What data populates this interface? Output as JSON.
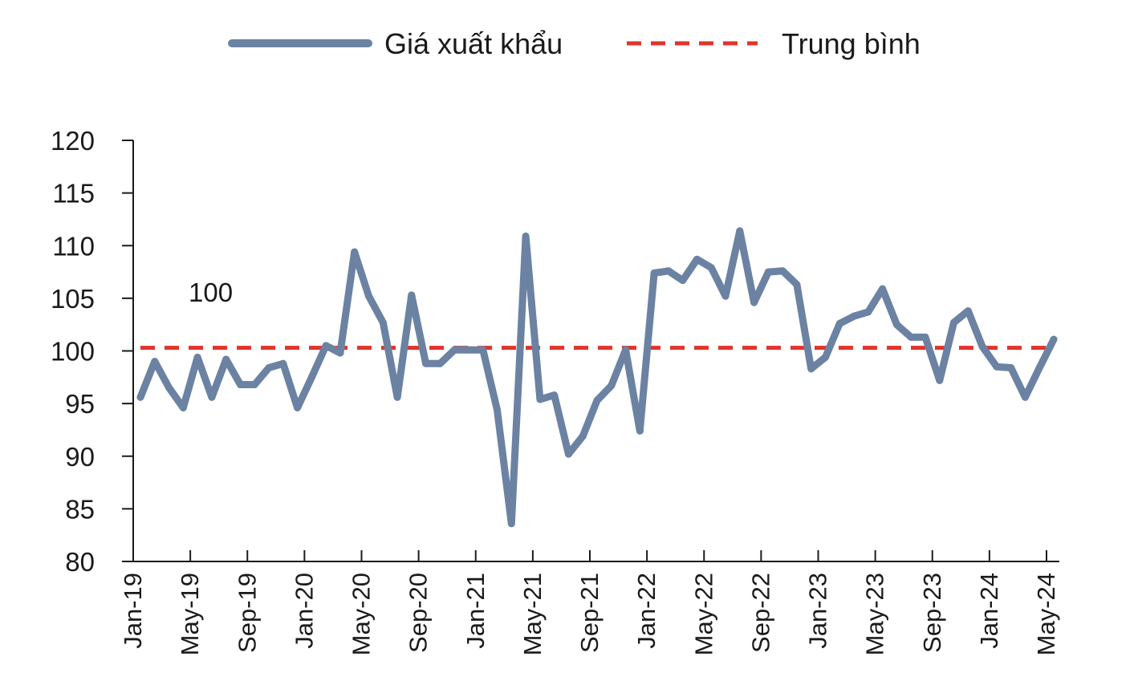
{
  "chart_data": {
    "type": "line",
    "title": "",
    "xlabel": "",
    "ylabel": "",
    "ylim": [
      80,
      120
    ],
    "y_ticks": [
      "80",
      "85",
      "90",
      "95",
      "100",
      "105",
      "110",
      "115",
      "120"
    ],
    "x_tick_labels": [
      "Jan-19",
      "May-19",
      "Sep-19",
      "Jan-20",
      "May-20",
      "Sep-20",
      "Jan-21",
      "May-21",
      "Sep-21",
      "Jan-22",
      "May-22",
      "Sep-22",
      "Jan-23",
      "May-23",
      "Sep-23",
      "Jan-24",
      "May-24"
    ],
    "grid": false,
    "legend_position": "top-center",
    "annotation": "100",
    "series": [
      {
        "name": "Giá xuất khẩu",
        "color": "#6b82a3",
        "style": "solid",
        "x": [
          "Jan-19",
          "Feb-19",
          "Mar-19",
          "Apr-19",
          "May-19",
          "Jun-19",
          "Jul-19",
          "Aug-19",
          "Sep-19",
          "Oct-19",
          "Nov-19",
          "Dec-19",
          "Jan-20",
          "Feb-20",
          "Mar-20",
          "Apr-20",
          "May-20",
          "Jun-20",
          "Jul-20",
          "Aug-20",
          "Sep-20",
          "Oct-20",
          "Nov-20",
          "Dec-20",
          "Jan-21",
          "Feb-21",
          "Mar-21",
          "Apr-21",
          "May-21",
          "Jun-21",
          "Jul-21",
          "Aug-21",
          "Sep-21",
          "Oct-21",
          "Nov-21",
          "Dec-21",
          "Jan-22",
          "Feb-22",
          "Mar-22",
          "Apr-22",
          "May-22",
          "Jun-22",
          "Jul-22",
          "Aug-22",
          "Sep-22",
          "Oct-22",
          "Nov-22",
          "Dec-22",
          "Jan-23",
          "Feb-23",
          "Mar-23",
          "Apr-23",
          "May-23",
          "Jun-23",
          "Jul-23",
          "Aug-23",
          "Sep-23",
          "Oct-23",
          "Nov-23",
          "Dec-23",
          "Jan-24",
          "Feb-24",
          "Mar-24",
          "Apr-24",
          "May-24"
        ],
        "values": [
          95.6,
          99.0,
          96.5,
          94.6,
          99.4,
          95.6,
          99.2,
          96.8,
          96.8,
          98.4,
          98.8,
          94.6,
          97.5,
          100.5,
          99.8,
          109.4,
          105.2,
          102.7,
          95.6,
          105.3,
          98.8,
          98.8,
          100.1,
          100.1,
          100.1,
          94.4,
          83.6,
          110.9,
          95.4,
          95.8,
          90.2,
          91.9,
          95.3,
          96.7,
          100.1,
          92.4,
          107.4,
          107.6,
          106.7,
          108.7,
          107.9,
          105.2,
          111.4,
          104.6,
          107.5,
          107.6,
          106.3,
          98.3,
          99.4,
          102.6,
          103.3,
          103.7,
          105.9,
          102.5,
          101.3,
          101.3,
          97.2,
          102.7,
          103.8,
          100.4,
          98.5,
          98.4,
          95.6,
          98.4,
          101.1
        ]
      },
      {
        "name": "Trung bình",
        "color": "#e0342b",
        "style": "dashed",
        "value": 100.3
      }
    ]
  }
}
